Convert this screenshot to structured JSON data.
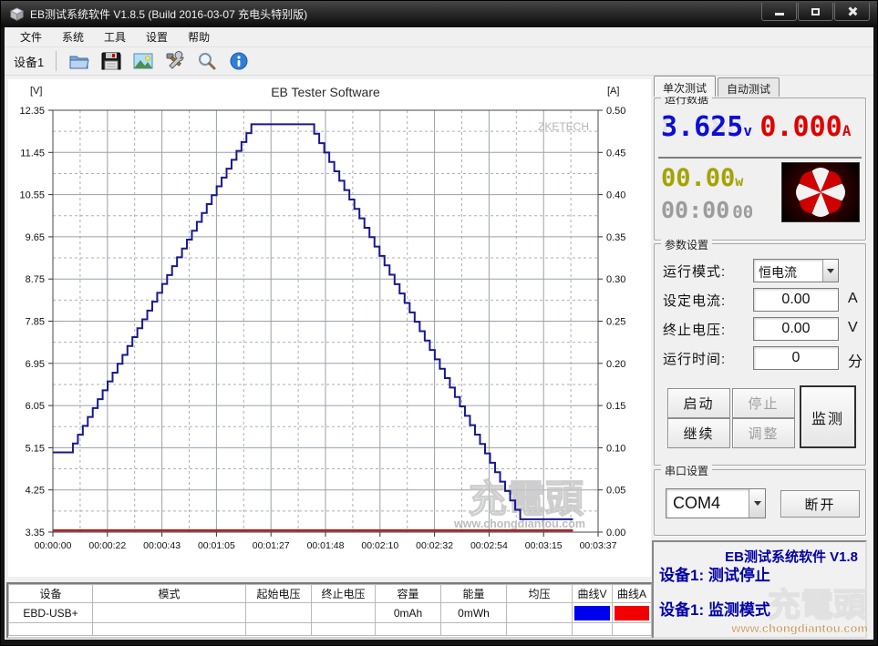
{
  "window": {
    "title": "EB测试系统软件 V1.8.5 (Build 2016-03-07 充电头特别版)"
  },
  "menu": {
    "items": [
      "文件",
      "系统",
      "工具",
      "设置",
      "帮助"
    ]
  },
  "toolbar": {
    "device_tab": "设备1",
    "icons": [
      "open-file-icon",
      "save-icon",
      "export-image-icon",
      "tools-icon",
      "zoom-icon",
      "info-icon"
    ]
  },
  "chart_data": {
    "type": "line",
    "title": "EB Tester Software",
    "brand_watermark": "ZKETECH",
    "watermark": {
      "logo_text": "充電頭",
      "url": "www.chongdiantou.com"
    },
    "grid": true,
    "x_axis": {
      "total_seconds": 217,
      "labels": [
        "00:00:00",
        "00:00:22",
        "00:00:43",
        "00:01:05",
        "00:01:27",
        "00:01:48",
        "00:02:10",
        "00:02:32",
        "00:02:54",
        "00:03:15",
        "00:03:37"
      ]
    },
    "y_left": {
      "label": "[V]",
      "min": 3.35,
      "max": 12.35,
      "labels": [
        "12.35",
        "11.45",
        "10.55",
        "9.65",
        "8.75",
        "7.85",
        "6.95",
        "6.05",
        "5.15",
        "4.25",
        "3.35"
      ]
    },
    "y_right": {
      "label": "[A]",
      "min": 0.0,
      "max": 0.5,
      "labels": [
        "0.50",
        "0.45",
        "0.40",
        "0.35",
        "0.30",
        "0.25",
        "0.20",
        "0.15",
        "0.10",
        "0.05",
        "0.00"
      ]
    },
    "series": [
      {
        "name": "voltage",
        "axis": "left",
        "color": "#18188f",
        "width": 2,
        "mode": "stair",
        "step_seconds": 2,
        "points": [
          [
            0,
            5.05
          ],
          [
            6,
            5.05
          ],
          [
            79,
            12.05
          ],
          [
            102,
            12.05
          ],
          [
            186,
            3.625
          ],
          [
            207,
            3.625
          ]
        ]
      },
      {
        "name": "current",
        "axis": "right",
        "color": "#b22222",
        "width": 2.5,
        "mode": "line",
        "points": [
          [
            0,
            0.002
          ],
          [
            207,
            0.002
          ]
        ]
      }
    ]
  },
  "right_panel": {
    "tabs": [
      {
        "label": "单次测试"
      },
      {
        "label": "自动测试"
      }
    ],
    "run_data": {
      "group_label": "运行数据",
      "voltage": "3.625",
      "voltage_unit": "v",
      "current": "0.000",
      "current_unit": "A",
      "power": "00.00",
      "power_unit": "w",
      "time_main": "00:00",
      "time_small": "00",
      "logo": "umbrella-logo"
    },
    "params": {
      "group_label": "参数设置",
      "rows": [
        {
          "label": "运行模式:",
          "type": "select",
          "value": "恒电流",
          "suffix": ""
        },
        {
          "label": "设定电流:",
          "type": "input",
          "value": "0.00",
          "suffix": "A"
        },
        {
          "label": "终止电压:",
          "type": "input",
          "value": "0.00",
          "suffix": "V"
        },
        {
          "label": "运行时间:",
          "type": "input",
          "value": "0",
          "suffix": "分"
        }
      ],
      "buttons": {
        "start": "启动",
        "stop": "停止",
        "continue": "继续",
        "adjust": "调整",
        "monitor": "监测"
      }
    },
    "serial": {
      "group_label": "串口设置",
      "port": "COM4",
      "disconnect": "断开"
    },
    "status": {
      "line1": "EB测试系统软件 V1.8",
      "line2": "设备1: 测试停止",
      "line3": "设备1: 监测模式"
    }
  },
  "table": {
    "headers": [
      "设备",
      "模式",
      "起始电压",
      "终止电压",
      "容量",
      "能量",
      "均压",
      "曲线V",
      "曲线A"
    ],
    "rows": [
      [
        "EBD-USB+",
        "",
        "",
        "",
        "0mAh",
        "0mWh",
        "",
        {
          "swatch": "#0000ee"
        },
        {
          "swatch": "#f00000"
        }
      ],
      [
        "",
        "",
        "",
        "",
        "",
        "",
        "",
        "",
        ""
      ]
    ]
  },
  "colors": {
    "curve_voltage": "#18188f",
    "curve_current": "#b22222",
    "lcd_voltage": "#0d0dd6",
    "lcd_current": "#e00000",
    "lcd_power": "#a3a300",
    "status_text": "#0000a6",
    "swatch_v": "#0000ee",
    "swatch_a": "#f00000"
  }
}
